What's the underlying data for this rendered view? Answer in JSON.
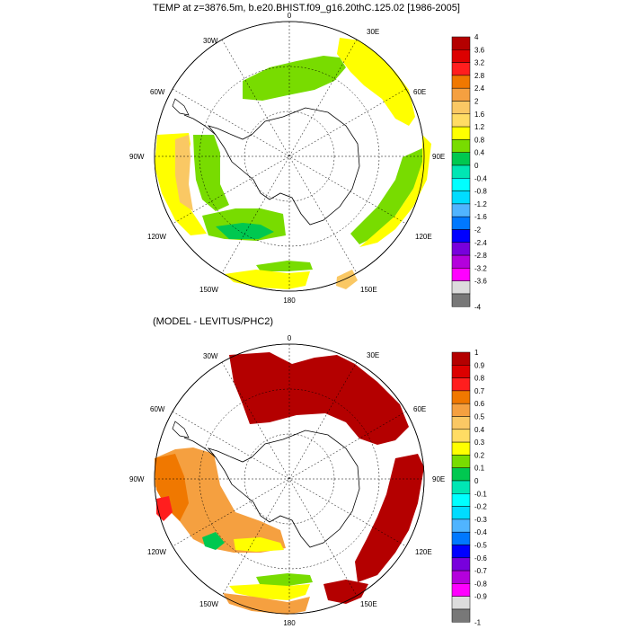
{
  "panel1": {
    "title": "TEMP at z=3876.5m, b.e20.BHIST.f09_g16.20thC.125.02 [1986-2005]",
    "colorbar": {
      "labels": [
        "4",
        "3.6",
        "3.2",
        "2.8",
        "2.4",
        "2",
        "1.6",
        "1.2",
        "0.8",
        "0.4",
        "0",
        "-0.4",
        "-0.8",
        "-1.2",
        "-1.6",
        "-2",
        "-2.4",
        "-2.8",
        "-3.2",
        "-3.6",
        "-4"
      ]
    }
  },
  "panel2": {
    "title": "(MODEL - LEVITUS/PHC2)",
    "colorbar": {
      "labels": [
        "1",
        "0.9",
        "0.8",
        "0.7",
        "0.6",
        "0.5",
        "0.4",
        "0.3",
        "0.2",
        "0.1",
        "0",
        "-0.1",
        "-0.2",
        "-0.3",
        "-0.4",
        "-0.5",
        "-0.6",
        "-0.7",
        "-0.8",
        "-0.9",
        "-1"
      ]
    }
  },
  "longitude_labels": {
    "top": "0",
    "30e": "30E",
    "60e": "60E",
    "90e": "90E",
    "120e": "120E",
    "150e": "150E",
    "bottom": "180",
    "150w": "150W",
    "120w": "120W",
    "90w": "90W",
    "60w": "60W",
    "30w": "30W"
  },
  "colors": {
    "palette": [
      "#b40000",
      "#dc0000",
      "#ff1e1e",
      "#f07800",
      "#f5a040",
      "#fac864",
      "#ffdc64",
      "#ffff00",
      "#78dc00",
      "#00c850",
      "#00e6b4",
      "#00ffff",
      "#00dcff",
      "#50b4ff",
      "#0078ff",
      "#0000ff",
      "#7800dc",
      "#b400dc",
      "#ff00ff",
      "#dcdcdc",
      "#787878"
    ]
  }
}
